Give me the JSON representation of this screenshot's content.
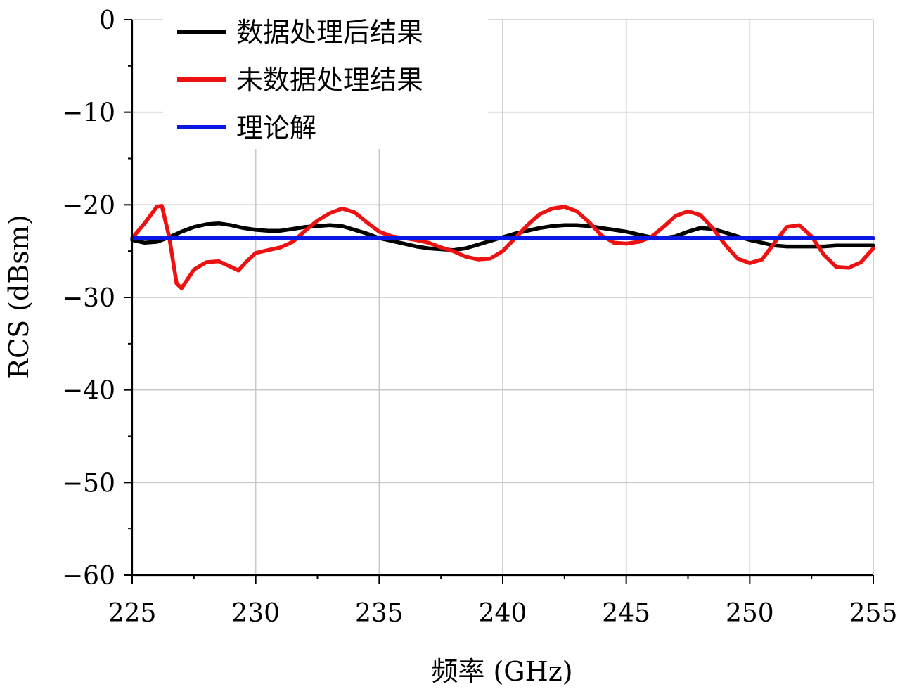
{
  "chart_data": {
    "type": "line",
    "title": "",
    "xlabel": "频率 (GHz)",
    "ylabel": "RCS (dBsm)",
    "xlim": [
      225,
      255
    ],
    "ylim": [
      -60,
      0
    ],
    "xticks": [
      225,
      230,
      235,
      240,
      245,
      250,
      255
    ],
    "yticks": [
      0,
      -10,
      -20,
      -30,
      -40,
      -50,
      -60
    ],
    "xtick_labels": [
      "225",
      "230",
      "235",
      "240",
      "245",
      "250",
      "255"
    ],
    "ytick_labels": [
      "0",
      "−10",
      "−20",
      "−30",
      "−40",
      "−50",
      "−60"
    ],
    "grid": true,
    "legend_position": "top-left",
    "series": [
      {
        "name": "数据处理后结果",
        "color": "#000000",
        "x": [
          225,
          225.5,
          226,
          226.5,
          227,
          227.5,
          228,
          228.5,
          229,
          229.5,
          230,
          230.5,
          231,
          231.5,
          232,
          232.5,
          233,
          233.5,
          234,
          234.5,
          235,
          235.5,
          236,
          236.5,
          237,
          237.5,
          238,
          238.5,
          239,
          239.5,
          240,
          240.5,
          241,
          241.5,
          242,
          242.5,
          243,
          243.5,
          244,
          244.5,
          245,
          245.5,
          246,
          246.5,
          247,
          247.5,
          248,
          248.5,
          249,
          249.5,
          250,
          250.5,
          251,
          251.5,
          252,
          252.5,
          253,
          253.5,
          254,
          254.5,
          255
        ],
        "y": [
          -23.8,
          -24.1,
          -24.0,
          -23.5,
          -22.9,
          -22.4,
          -22.1,
          -22.0,
          -22.2,
          -22.5,
          -22.7,
          -22.8,
          -22.8,
          -22.6,
          -22.4,
          -22.3,
          -22.2,
          -22.3,
          -22.7,
          -23.1,
          -23.6,
          -23.9,
          -24.2,
          -24.5,
          -24.7,
          -24.8,
          -24.9,
          -24.7,
          -24.3,
          -23.9,
          -23.5,
          -23.1,
          -22.8,
          -22.5,
          -22.3,
          -22.2,
          -22.2,
          -22.3,
          -22.5,
          -22.7,
          -22.9,
          -23.2,
          -23.5,
          -23.6,
          -23.4,
          -22.9,
          -22.5,
          -22.6,
          -23.0,
          -23.4,
          -23.8,
          -24.1,
          -24.4,
          -24.5,
          -24.5,
          -24.5,
          -24.5,
          -24.4,
          -24.4,
          -24.4,
          -24.4
        ]
      },
      {
        "name": "未数据处理结果",
        "color": "#ee1111",
        "x": [
          225,
          225.5,
          226,
          226.2,
          226.5,
          226.8,
          227,
          227.5,
          228,
          228.5,
          229,
          229.3,
          229.6,
          230,
          230.5,
          231,
          231.5,
          232,
          232.5,
          233,
          233.5,
          234,
          234.5,
          235,
          235.5,
          236,
          236.5,
          237,
          237.5,
          238,
          238.5,
          239,
          239.5,
          240,
          240.5,
          241,
          241.5,
          242,
          242.5,
          243,
          243.5,
          244,
          244.5,
          245,
          245.5,
          246,
          246.5,
          247,
          247.5,
          248,
          248.5,
          249,
          249.5,
          250,
          250.5,
          251,
          251.5,
          252,
          252.5,
          253,
          253.5,
          254,
          254.5,
          255
        ],
        "y": [
          -23.6,
          -22.0,
          -20.2,
          -20.1,
          -23.5,
          -28.5,
          -29.0,
          -27.0,
          -26.2,
          -26.1,
          -26.7,
          -27.1,
          -26.2,
          -25.2,
          -24.9,
          -24.6,
          -24.0,
          -22.8,
          -21.7,
          -20.9,
          -20.4,
          -20.8,
          -21.9,
          -22.9,
          -23.4,
          -23.6,
          -23.8,
          -24.1,
          -24.6,
          -25.0,
          -25.6,
          -25.9,
          -25.8,
          -25.0,
          -23.6,
          -22.2,
          -21.0,
          -20.4,
          -20.2,
          -20.7,
          -21.9,
          -23.3,
          -24.1,
          -24.2,
          -24.0,
          -23.5,
          -22.4,
          -21.2,
          -20.7,
          -21.1,
          -22.5,
          -24.3,
          -25.8,
          -26.3,
          -25.9,
          -24.1,
          -22.4,
          -22.2,
          -23.4,
          -25.4,
          -26.7,
          -26.8,
          -26.2,
          -24.7
        ]
      },
      {
        "name": "理论解",
        "color": "#0a18e6",
        "x": [
          225,
          255
        ],
        "y": [
          -23.6,
          -23.6
        ]
      }
    ]
  }
}
